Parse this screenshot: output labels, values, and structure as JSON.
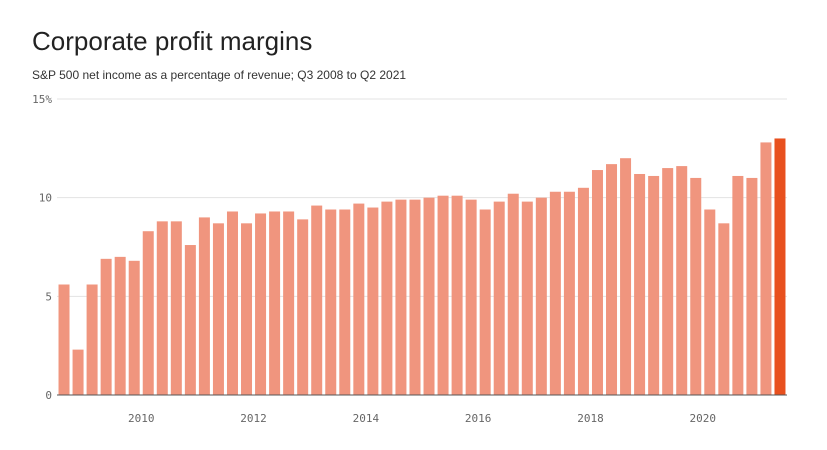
{
  "chart_data": {
    "type": "bar",
    "title": "Corporate profit margins",
    "subtitle": "S&P 500 net income as a percentage of revenue; Q3 2008 to Q2 2021",
    "categories": [
      null,
      null,
      null,
      null,
      null,
      null,
      "2010",
      null,
      null,
      null,
      null,
      null,
      null,
      null,
      "2012",
      null,
      null,
      null,
      null,
      null,
      null,
      null,
      "2014",
      null,
      null,
      null,
      null,
      null,
      null,
      null,
      "2016",
      null,
      null,
      null,
      null,
      null,
      null,
      null,
      "2018",
      null,
      null,
      null,
      null,
      null,
      null,
      null,
      "2020",
      null,
      null,
      null,
      null,
      null
    ],
    "values": [
      5.6,
      2.3,
      5.6,
      6.9,
      7.0,
      6.8,
      8.3,
      8.8,
      8.8,
      7.6,
      9.0,
      8.7,
      9.3,
      8.7,
      9.2,
      9.3,
      9.3,
      8.9,
      9.6,
      9.4,
      9.4,
      9.7,
      9.5,
      9.8,
      9.9,
      9.9,
      10.0,
      10.1,
      10.1,
      9.9,
      9.4,
      9.8,
      10.2,
      9.8,
      10.0,
      10.3,
      10.3,
      10.5,
      11.4,
      11.7,
      12.0,
      11.2,
      11.1,
      11.5,
      11.6,
      11.0,
      9.4,
      8.7,
      11.1,
      11.0,
      12.8,
      13.0
    ],
    "colors": [
      "#f0957e",
      "#f0957e",
      "#f0957e",
      "#f0957e",
      "#f0957e",
      "#f0957e",
      "#f0957e",
      "#f0957e",
      "#f0957e",
      "#f0957e",
      "#f0957e",
      "#f0957e",
      "#f0957e",
      "#f0957e",
      "#f0957e",
      "#f0957e",
      "#f0957e",
      "#f0957e",
      "#f0957e",
      "#f0957e",
      "#f0957e",
      "#f0957e",
      "#f0957e",
      "#f0957e",
      "#f0957e",
      "#f0957e",
      "#f0957e",
      "#f0957e",
      "#f0957e",
      "#f0957e",
      "#f0957e",
      "#f0957e",
      "#f0957e",
      "#f0957e",
      "#f0957e",
      "#f0957e",
      "#f0957e",
      "#f0957e",
      "#f0957e",
      "#f0957e",
      "#f0957e",
      "#f0957e",
      "#f0957e",
      "#f0957e",
      "#f0957e",
      "#f0957e",
      "#f0957e",
      "#f0957e",
      "#f0957e",
      "#f0957e",
      "#f0957e",
      "#e8501e"
    ],
    "ylim": [
      0,
      15
    ],
    "yticks": [
      0,
      5,
      10,
      {
        "value": 15,
        "label": "15%"
      }
    ],
    "grid": true
  }
}
